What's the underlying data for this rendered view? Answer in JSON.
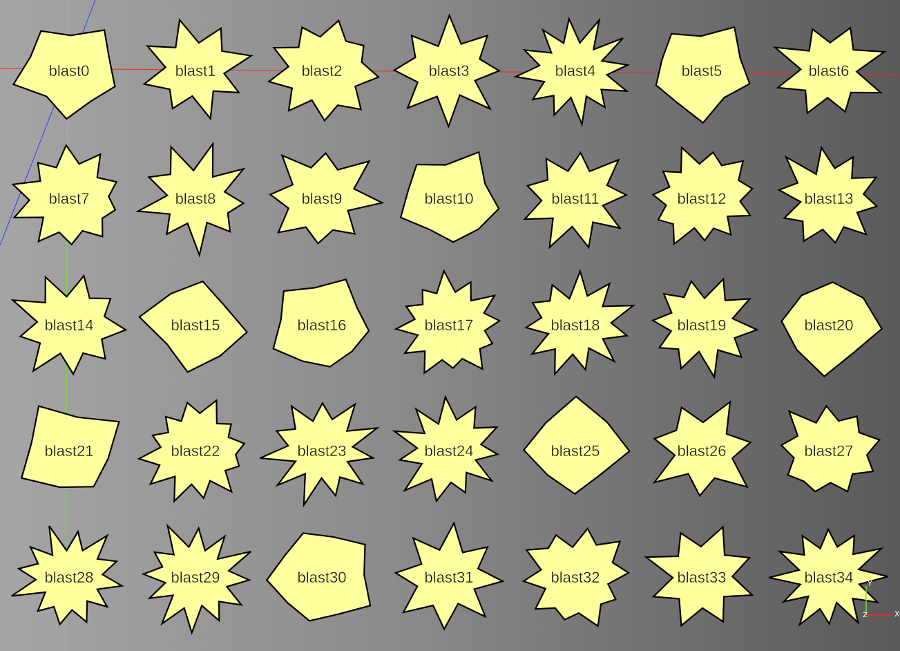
{
  "viewport": {
    "shape_fill": "#ffff9d",
    "shape_stroke": "#000000",
    "red_axis_color": "#ff2222",
    "green_axis_color": "#7ddc3a",
    "blue_axis_color": "#2a3aff"
  },
  "objects": [
    {
      "name": "blast0"
    },
    {
      "name": "blast1"
    },
    {
      "name": "blast2"
    },
    {
      "name": "blast3"
    },
    {
      "name": "blast4"
    },
    {
      "name": "blast5"
    },
    {
      "name": "blast6"
    },
    {
      "name": "blast7"
    },
    {
      "name": "blast8"
    },
    {
      "name": "blast9"
    },
    {
      "name": "blast10"
    },
    {
      "name": "blast11"
    },
    {
      "name": "blast12"
    },
    {
      "name": "blast13"
    },
    {
      "name": "blast14"
    },
    {
      "name": "blast15"
    },
    {
      "name": "blast16"
    },
    {
      "name": "blast17"
    },
    {
      "name": "blast18"
    },
    {
      "name": "blast19"
    },
    {
      "name": "blast20"
    },
    {
      "name": "blast21"
    },
    {
      "name": "blast22"
    },
    {
      "name": "blast23"
    },
    {
      "name": "blast24"
    },
    {
      "name": "blast25"
    },
    {
      "name": "blast26"
    },
    {
      "name": "blast27"
    },
    {
      "name": "blast28"
    },
    {
      "name": "blast29"
    },
    {
      "name": "blast30"
    },
    {
      "name": "blast31"
    },
    {
      "name": "blast32"
    },
    {
      "name": "blast33"
    },
    {
      "name": "blast34"
    }
  ],
  "axis_indicator": {
    "x_label": "X",
    "y_label": "Y",
    "z_label": "Z"
  }
}
